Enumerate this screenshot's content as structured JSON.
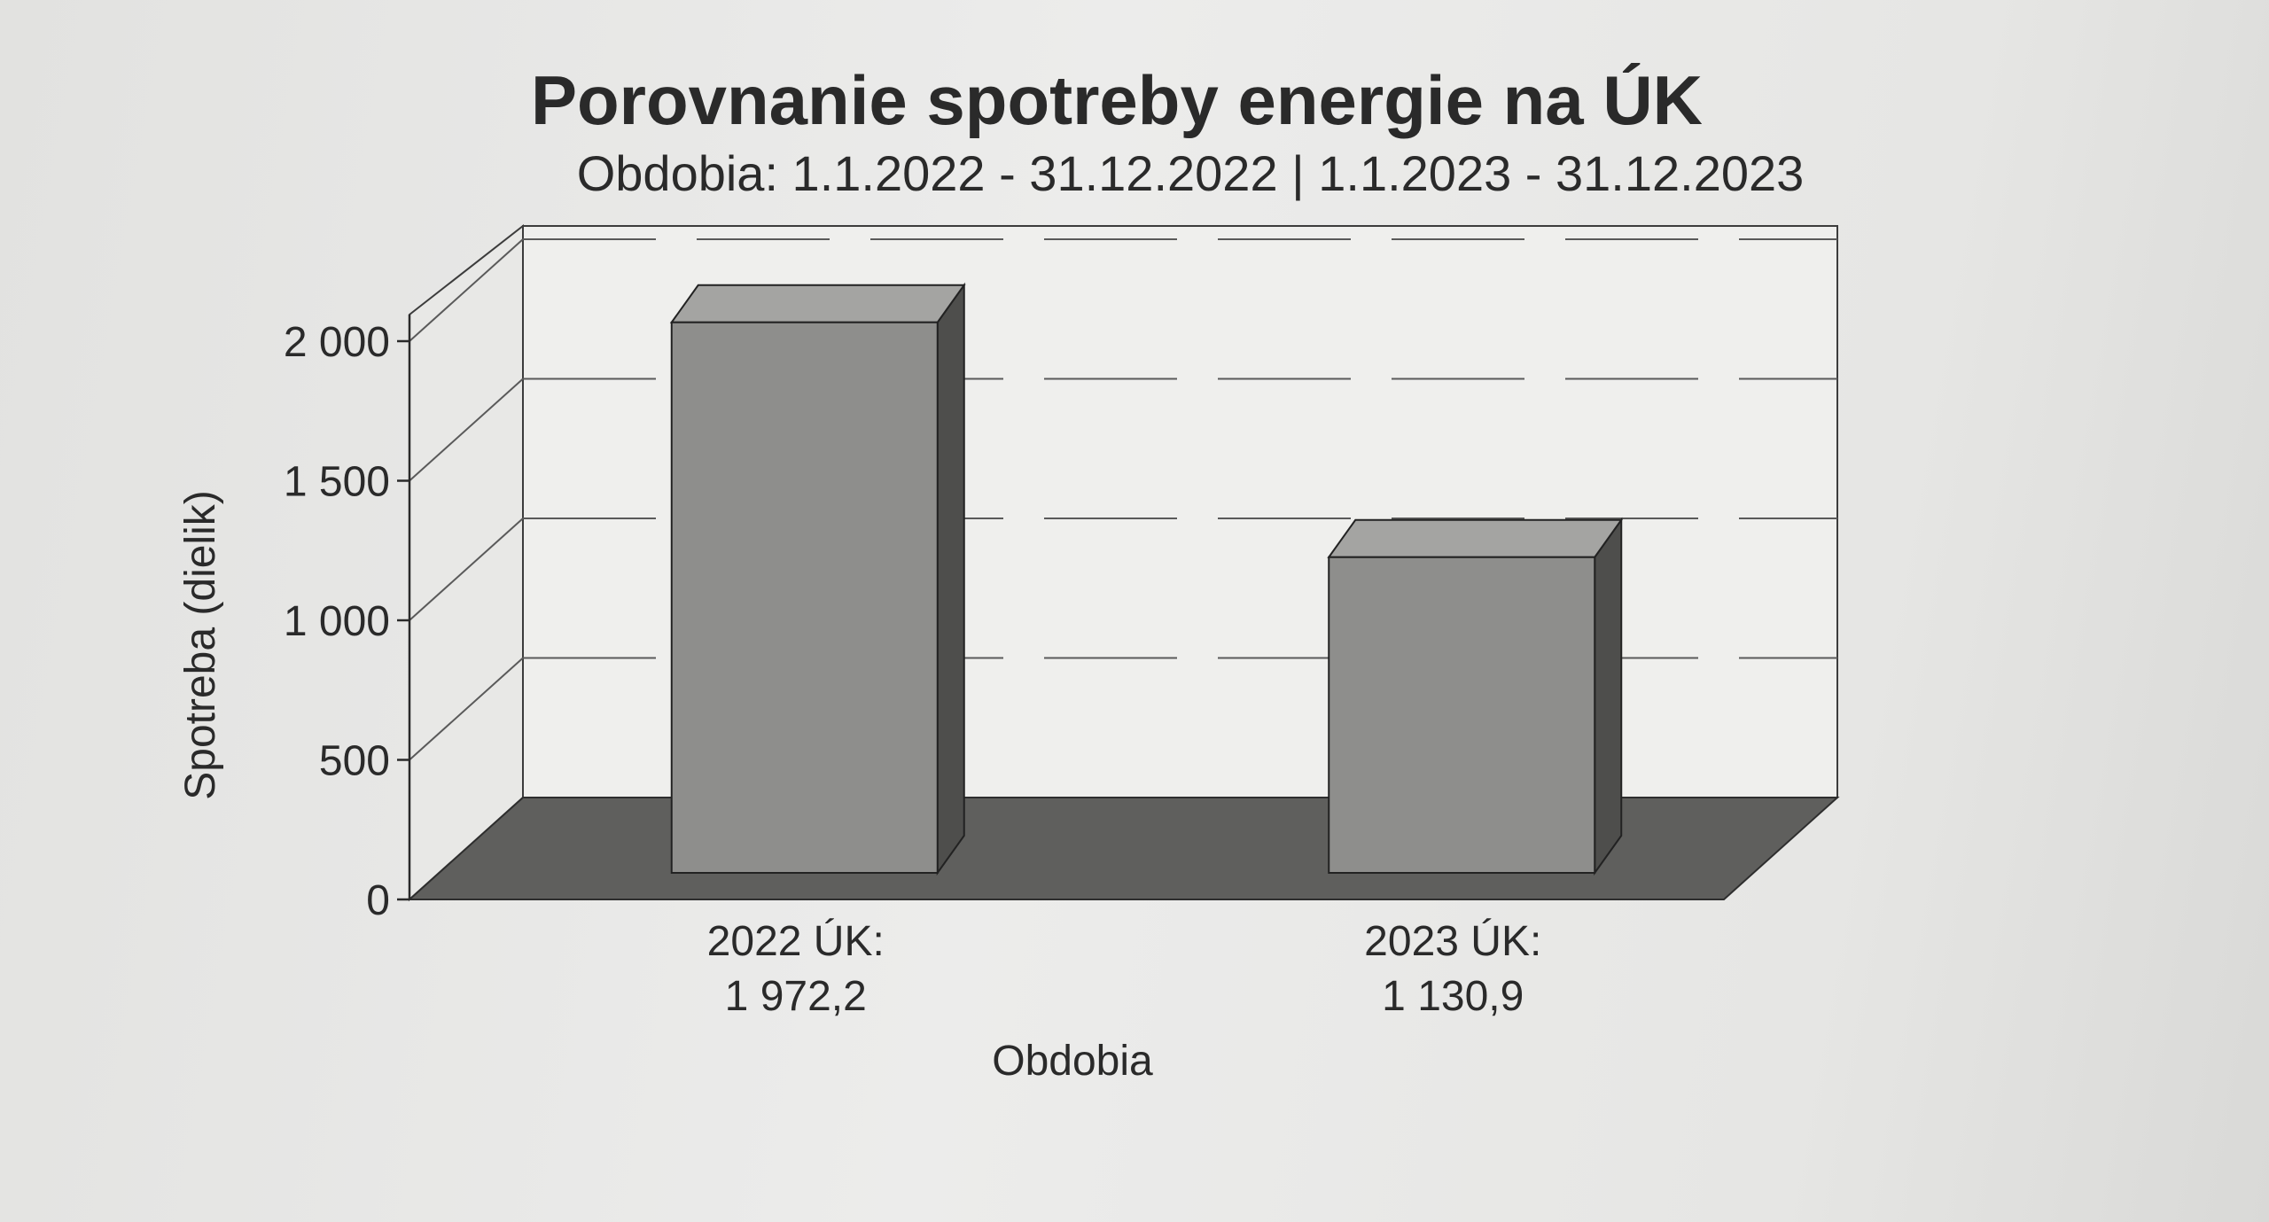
{
  "chart_data": {
    "type": "bar",
    "title": "Porovnanie spotreby energie na ÚK",
    "subtitle": "Obdobia: 1.1.2022 - 31.12.2022 | 1.1.2023 - 31.12.2023",
    "xlabel": "Obdobia",
    "ylabel": "Spotreba (dielik)",
    "ylim": [
      0,
      2000
    ],
    "yticks": [
      "0",
      "500",
      "1 000",
      "1 500",
      "2 000"
    ],
    "grid": true,
    "legend": "none",
    "categories": [
      {
        "label": "2022 ÚK:",
        "value_label": "1 972,2"
      },
      {
        "label": "2023 ÚK:",
        "value_label": "1 130,9"
      }
    ],
    "values": [
      1972.2,
      1130.9
    ],
    "colors": {
      "bar_front": "#8e8e8c",
      "bar_top": "#a4a4a2",
      "bar_side": "#4e4e4c",
      "floor": "#5f5f5d",
      "wall": "#efefed",
      "grid": "#5a5a5a"
    }
  }
}
